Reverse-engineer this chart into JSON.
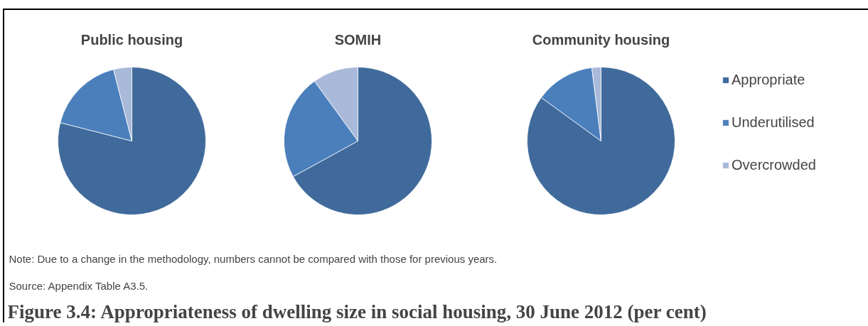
{
  "chart_data": {
    "type": "pie",
    "title": "Figure 3.4: Appropriateness of dwelling size in social housing, 30 June 2012 (per cent)",
    "categories": [
      "Appropriate",
      "Underutilised",
      "Overcrowded"
    ],
    "colors": [
      "#406a9b",
      "#4b7fbc",
      "#a9b9d9"
    ],
    "series": [
      {
        "name": "Public housing",
        "values": [
          79,
          17,
          4
        ]
      },
      {
        "name": "SOMIH",
        "values": [
          67,
          23,
          10
        ]
      },
      {
        "name": "Community housing",
        "values": [
          85,
          13,
          2
        ]
      }
    ],
    "legend": "right",
    "annotations": [
      "Note: Due to a change in the methodology, numbers cannot be compared with those for previous years.",
      "Source: Appendix Table A3.5."
    ]
  }
}
